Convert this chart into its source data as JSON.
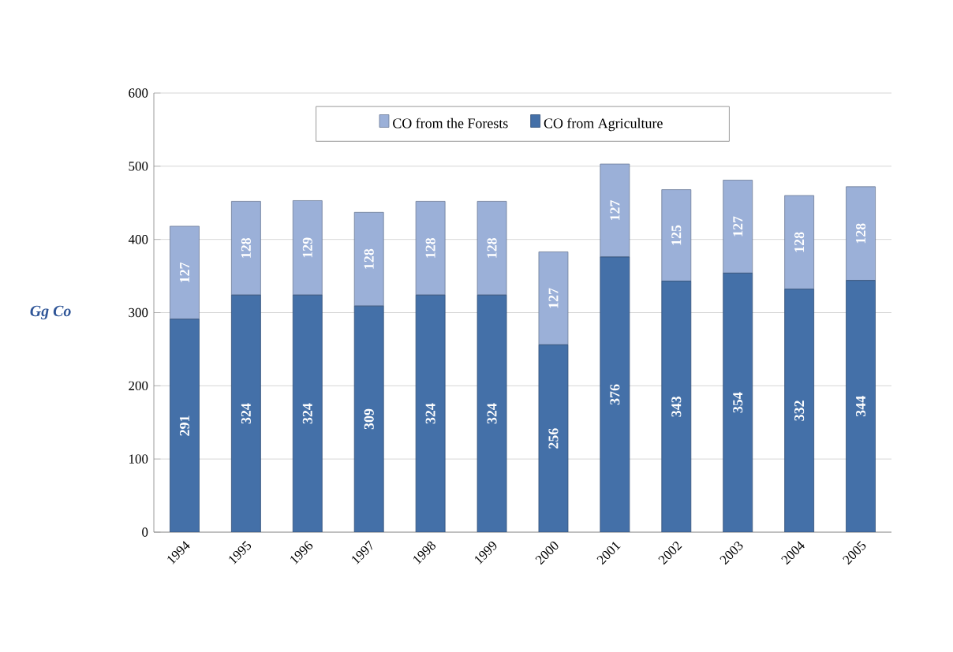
{
  "chart_data": {
    "type": "bar",
    "stacked": true,
    "ylabel": "Gg Co",
    "categories": [
      "1994",
      "1995",
      "1996",
      "1997",
      "1998",
      "1999",
      "2000",
      "2001",
      "2002",
      "2003",
      "2004",
      "2005"
    ],
    "series": [
      {
        "name": "CO from Agriculture",
        "color": "#4470a8",
        "values": [
          291,
          324,
          324,
          309,
          324,
          324,
          256,
          376,
          343,
          354,
          332,
          344
        ]
      },
      {
        "name": "CO from the Forests",
        "color": "#9bb0d8",
        "values": [
          127,
          128,
          129,
          128,
          128,
          128,
          127,
          127,
          125,
          127,
          128,
          128
        ]
      }
    ],
    "ylim": [
      0,
      600
    ],
    "yticks": [
      0,
      100,
      200,
      300,
      400,
      500,
      600
    ],
    "grid": "y",
    "legend": "top",
    "data_labels": true
  }
}
